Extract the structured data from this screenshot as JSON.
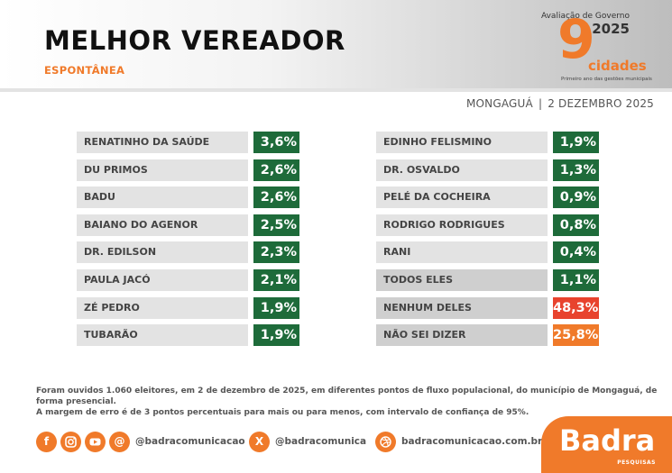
{
  "header": {
    "title": "MELHOR VEREADOR",
    "subtitle": "ESPONTÂNEA",
    "logo": {
      "top_text": "Avaliação de Governo",
      "year": "2025",
      "number": "9",
      "word": "cidades",
      "tagline": "Primeiro ano das gestões municipais"
    },
    "place": "MONGAGUÁ",
    "separator": "|",
    "date": "2 DEZEMBRO 2025"
  },
  "chart_data": {
    "type": "table",
    "title": "MELHOR VEREADOR",
    "subtitle": "ESPONTÂNEA",
    "unit": "%",
    "columns": [
      [
        {
          "name": "RENATINHO DA SAÚDE",
          "value": 3.6,
          "label": "3,6%",
          "color": "#1e6b3a"
        },
        {
          "name": "DU PRIMOS",
          "value": 2.6,
          "label": "2,6%",
          "color": "#1e6b3a"
        },
        {
          "name": "BADU",
          "value": 2.6,
          "label": "2,6%",
          "color": "#1e6b3a"
        },
        {
          "name": "BAIANO DO AGENOR",
          "value": 2.5,
          "label": "2,5%",
          "color": "#1e6b3a"
        },
        {
          "name": "DR. EDILSON",
          "value": 2.3,
          "label": "2,3%",
          "color": "#1e6b3a"
        },
        {
          "name": "PAULA JACÓ",
          "value": 2.1,
          "label": "2,1%",
          "color": "#1e6b3a"
        },
        {
          "name": "ZÉ PEDRO",
          "value": 1.9,
          "label": "1,9%",
          "color": "#1e6b3a"
        },
        {
          "name": "TUBARÃO",
          "value": 1.9,
          "label": "1,9%",
          "color": "#1e6b3a"
        }
      ],
      [
        {
          "name": "EDINHO FELISMINO",
          "value": 1.9,
          "label": "1,9%",
          "color": "#1e6b3a"
        },
        {
          "name": "DR. OSVALDO",
          "value": 1.3,
          "label": "1,3%",
          "color": "#1e6b3a"
        },
        {
          "name": "PELÉ DA COCHEIRA",
          "value": 0.9,
          "label": "0,9%",
          "color": "#1e6b3a"
        },
        {
          "name": "RODRIGO RODRIGUES",
          "value": 0.8,
          "label": "0,8%",
          "color": "#1e6b3a"
        },
        {
          "name": "RANI",
          "value": 0.4,
          "label": "0,4%",
          "color": "#1e6b3a"
        },
        {
          "name": "TODOS ELES",
          "value": 1.1,
          "label": "1,1%",
          "color": "#1e6b3a",
          "gray": true
        },
        {
          "name": "NENHUM DELES",
          "value": 48.3,
          "label": "48,3%",
          "color": "#e8432e",
          "gray": true
        },
        {
          "name": "NÃO SEI DIZER",
          "value": 25.8,
          "label": "25,8%",
          "color": "#f07a2a",
          "gray": true
        }
      ]
    ]
  },
  "footnote": {
    "line1": "Foram ouvidos 1.060 eleitores, em 2 de dezembro de 2025, em diferentes pontos de fluxo populacional, do município de Mongaguá, de forma presencial.",
    "line2": "A margem de erro é de 3 pontos percentuais para mais ou para menos, com intervalo de confiança de 95%."
  },
  "social": {
    "handle1": "@badracomunicacao",
    "handle2": "@badracomunica",
    "site": "badracomunicacao.com.br",
    "icons": [
      "facebook-icon",
      "instagram-icon",
      "youtube-icon",
      "threads-icon",
      "x-icon",
      "dribbble-icon"
    ]
  },
  "brand": {
    "name": "Badra",
    "sub": "PESQUISAS"
  },
  "colors": {
    "green": "#1e6b3a",
    "red": "#e8432e",
    "orange": "#f07a2a"
  }
}
